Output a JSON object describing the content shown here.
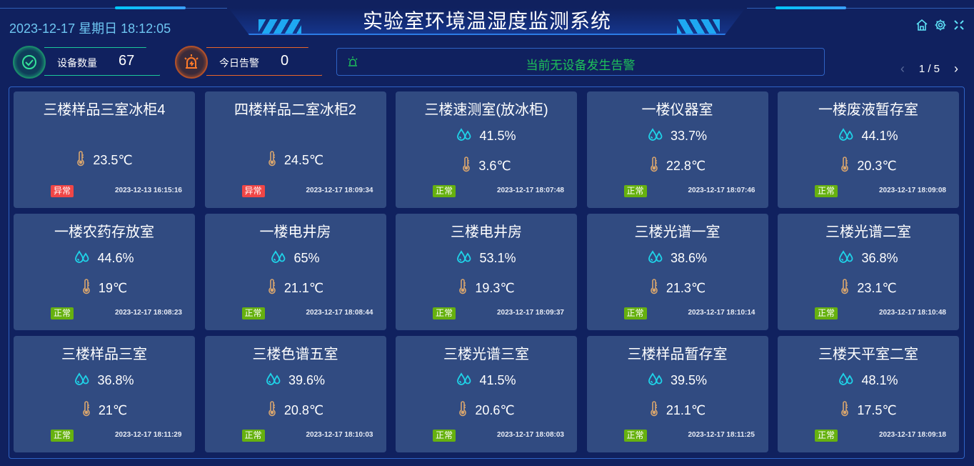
{
  "header": {
    "title": "实验室环境温湿度监测系统",
    "datetime": "2023-12-17 星期日 18:12:05",
    "icons": [
      "home-icon",
      "gear-icon",
      "fullscreen-icon"
    ]
  },
  "stats": {
    "device_label": "设备数量",
    "device_count": "67",
    "alarm_label": "今日告警",
    "alarm_count": "0"
  },
  "alarm_bar": {
    "text": "当前无设备发生告警",
    "icon": "alarm-light-icon"
  },
  "pager": {
    "text": "1 / 5",
    "prev": "‹",
    "next": "›"
  },
  "colors": {
    "normal": "#66b10f",
    "abnormal": "#f04646",
    "humidity": "#1fd3e8",
    "temperature": "#d8a56e",
    "background": "#10215f",
    "card": "#314b81"
  },
  "cards": [
    {
      "name": "三楼样品三室冰柜4",
      "humidity": null,
      "temp": "23.5℃",
      "status": "异常",
      "time": "2023-12-13 16:15:16"
    },
    {
      "name": "四楼样品二室冰柜2",
      "humidity": null,
      "temp": "24.5℃",
      "status": "异常",
      "time": "2023-12-17 18:09:34"
    },
    {
      "name": "三楼速测室(放冰柜)",
      "humidity": "41.5%",
      "temp": "3.6℃",
      "status": "正常",
      "time": "2023-12-17 18:07:48"
    },
    {
      "name": "一楼仪器室",
      "humidity": "33.7%",
      "temp": "22.8℃",
      "status": "正常",
      "time": "2023-12-17 18:07:46"
    },
    {
      "name": "一楼废液暂存室",
      "humidity": "44.1%",
      "temp": "20.3℃",
      "status": "正常",
      "time": "2023-12-17 18:09:08"
    },
    {
      "name": "一楼农药存放室",
      "humidity": "44.6%",
      "temp": "19℃",
      "status": "正常",
      "time": "2023-12-17 18:08:23"
    },
    {
      "name": "一楼电井房",
      "humidity": "65%",
      "temp": "21.1℃",
      "status": "正常",
      "time": "2023-12-17 18:08:44"
    },
    {
      "name": "三楼电井房",
      "humidity": "53.1%",
      "temp": "19.3℃",
      "status": "正常",
      "time": "2023-12-17 18:09:37"
    },
    {
      "name": "三楼光谱一室",
      "humidity": "38.6%",
      "temp": "21.3℃",
      "status": "正常",
      "time": "2023-12-17 18:10:14"
    },
    {
      "name": "三楼光谱二室",
      "humidity": "36.8%",
      "temp": "23.1℃",
      "status": "正常",
      "time": "2023-12-17 18:10:48"
    },
    {
      "name": "三楼样品三室",
      "humidity": "36.8%",
      "temp": "21℃",
      "status": "正常",
      "time": "2023-12-17 18:11:29"
    },
    {
      "name": "三楼色谱五室",
      "humidity": "39.6%",
      "temp": "20.8℃",
      "status": "正常",
      "time": "2023-12-17 18:10:03"
    },
    {
      "name": "三楼光谱三室",
      "humidity": "41.5%",
      "temp": "20.6℃",
      "status": "正常",
      "time": "2023-12-17 18:08:03"
    },
    {
      "name": "三楼样品暂存室",
      "humidity": "39.5%",
      "temp": "21.1℃",
      "status": "正常",
      "time": "2023-12-17 18:11:25"
    },
    {
      "name": "三楼天平室二室",
      "humidity": "48.1%",
      "temp": "17.5℃",
      "status": "正常",
      "time": "2023-12-17 18:09:18"
    }
  ]
}
